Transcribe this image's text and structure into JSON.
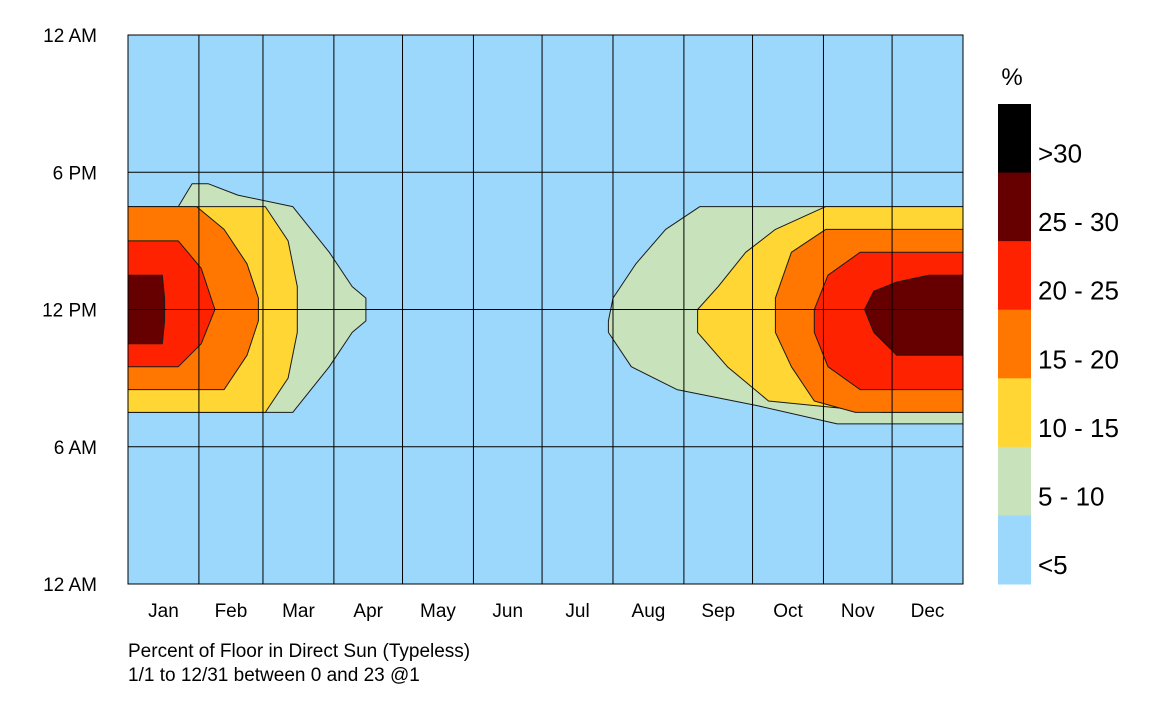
{
  "chart_data": {
    "type": "heatmap",
    "subtitle": "1/1 to 12/31 between 0 and 23 @1",
    "title": "Percent of Floor in Direct Sun (Typeless)",
    "x": {
      "months": [
        "Jan",
        "Feb",
        "Mar",
        "Apr",
        "May",
        "Jun",
        "Jul",
        "Aug",
        "Sep",
        "Oct",
        "Nov",
        "Dec"
      ],
      "days_in_month": [
        31,
        28,
        31,
        30,
        31,
        30,
        31,
        31,
        30,
        31,
        30,
        31
      ],
      "range_days": [
        0,
        365
      ]
    },
    "y": {
      "range_hours": [
        0,
        24
      ],
      "ticks": [
        {
          "hour": 24,
          "label": "12 AM"
        },
        {
          "hour": 18,
          "label": "6 PM"
        },
        {
          "hour": 12,
          "label": "12 PM"
        },
        {
          "hour": 6,
          "label": "6 AM"
        },
        {
          "hour": 0,
          "label": "12 AM"
        }
      ]
    },
    "legend": {
      "title": "%",
      "placement": "right",
      "bins": [
        {
          "label": ">30",
          "color": "#000000"
        },
        {
          "label": "25 - 30",
          "color": "#660000"
        },
        {
          "label": "20 - 25",
          "color": "#ff2200"
        },
        {
          "label": "15 - 20",
          "color": "#ff7700"
        },
        {
          "label": "10 - 15",
          "color": "#ffd633"
        },
        {
          "label": "5 - 10",
          "color": "#c8e2bc"
        },
        {
          "label": "<5",
          "color": "#9cd8fc"
        }
      ]
    },
    "background_color": "#9cd8fc",
    "contours": [
      {
        "level": "5 - 10",
        "color": "#c8e2bc",
        "points": [
          [
            0,
            7.5
          ],
          [
            72,
            7.5
          ],
          [
            88,
            9.5
          ],
          [
            98,
            11
          ],
          [
            104,
            11.5
          ],
          [
            104,
            12.5
          ],
          [
            98,
            13
          ],
          [
            88,
            14.5
          ],
          [
            72,
            16.5
          ],
          [
            48,
            17
          ],
          [
            35,
            17.5
          ],
          [
            28,
            17.5
          ],
          [
            25,
            17
          ],
          [
            22,
            16.5
          ],
          [
            0,
            16.5
          ]
        ]
      },
      {
        "level": "5 - 10",
        "color": "#c8e2bc",
        "points": [
          [
            365,
            7
          ],
          [
            345,
            7
          ],
          [
            310,
            7
          ],
          [
            275,
            7.8
          ],
          [
            240,
            8.5
          ],
          [
            220,
            9.5
          ],
          [
            210,
            11
          ],
          [
            210,
            11.5
          ],
          [
            212,
            12.5
          ],
          [
            222,
            14
          ],
          [
            235,
            15.5
          ],
          [
            250,
            16.5
          ],
          [
            275,
            16.5
          ],
          [
            300,
            16.5
          ],
          [
            330,
            16.5
          ],
          [
            365,
            16.5
          ]
        ]
      },
      {
        "level": "10 - 15",
        "color": "#ffd633",
        "points": [
          [
            0,
            7.5
          ],
          [
            60,
            7.5
          ],
          [
            70,
            9
          ],
          [
            74,
            11
          ],
          [
            74,
            13
          ],
          [
            70,
            15
          ],
          [
            60,
            16.5
          ],
          [
            0,
            16.5
          ]
        ]
      },
      {
        "level": "10 - 15",
        "color": "#ffd633",
        "points": [
          [
            365,
            7.5
          ],
          [
            330,
            7.5
          ],
          [
            280,
            8
          ],
          [
            262,
            9.5
          ],
          [
            249,
            11
          ],
          [
            249,
            12
          ],
          [
            258,
            13
          ],
          [
            270,
            14.5
          ],
          [
            283,
            15.5
          ],
          [
            305,
            16.5
          ],
          [
            365,
            16.5
          ]
        ]
      },
      {
        "level": "15 - 20",
        "color": "#ff7700",
        "points": [
          [
            0,
            8.5
          ],
          [
            42,
            8.5
          ],
          [
            52,
            10
          ],
          [
            57,
            11.5
          ],
          [
            57,
            12.5
          ],
          [
            52,
            14
          ],
          [
            42,
            15.5
          ],
          [
            30,
            16.5
          ],
          [
            0,
            16.5
          ]
        ]
      },
      {
        "level": "15 - 20",
        "color": "#ff7700",
        "points": [
          [
            365,
            7.5
          ],
          [
            318,
            7.5
          ],
          [
            300,
            8
          ],
          [
            290,
            9.5
          ],
          [
            283,
            11
          ],
          [
            283,
            12.5
          ],
          [
            290,
            14.5
          ],
          [
            305,
            15.5
          ],
          [
            318,
            15.5
          ],
          [
            365,
            15.5
          ]
        ]
      },
      {
        "level": "20 - 25",
        "color": "#ff2200",
        "points": [
          [
            0,
            9.5
          ],
          [
            22,
            9.5
          ],
          [
            32,
            10.5
          ],
          [
            38,
            12
          ],
          [
            32,
            13.8
          ],
          [
            22,
            15
          ],
          [
            0,
            15
          ]
        ]
      },
      {
        "level": "20 - 25",
        "color": "#ff2200",
        "points": [
          [
            365,
            8.5
          ],
          [
            320,
            8.5
          ],
          [
            306,
            9.5
          ],
          [
            300,
            11
          ],
          [
            300,
            12
          ],
          [
            306,
            13.5
          ],
          [
            320,
            14.5
          ],
          [
            365,
            14.5
          ]
        ]
      },
      {
        "level": "25 - 30",
        "color": "#660000",
        "points": [
          [
            0,
            10.5
          ],
          [
            15,
            10.5
          ],
          [
            16,
            11.5
          ],
          [
            16,
            12.5
          ],
          [
            15,
            13.5
          ],
          [
            0,
            13.5
          ]
        ]
      },
      {
        "level": "25 - 30",
        "color": "#660000",
        "points": [
          [
            365,
            10
          ],
          [
            336,
            10
          ],
          [
            326,
            11
          ],
          [
            322,
            12
          ],
          [
            326,
            12.8
          ],
          [
            336,
            13.2
          ],
          [
            350,
            13.5
          ],
          [
            365,
            13.5
          ]
        ]
      }
    ]
  }
}
